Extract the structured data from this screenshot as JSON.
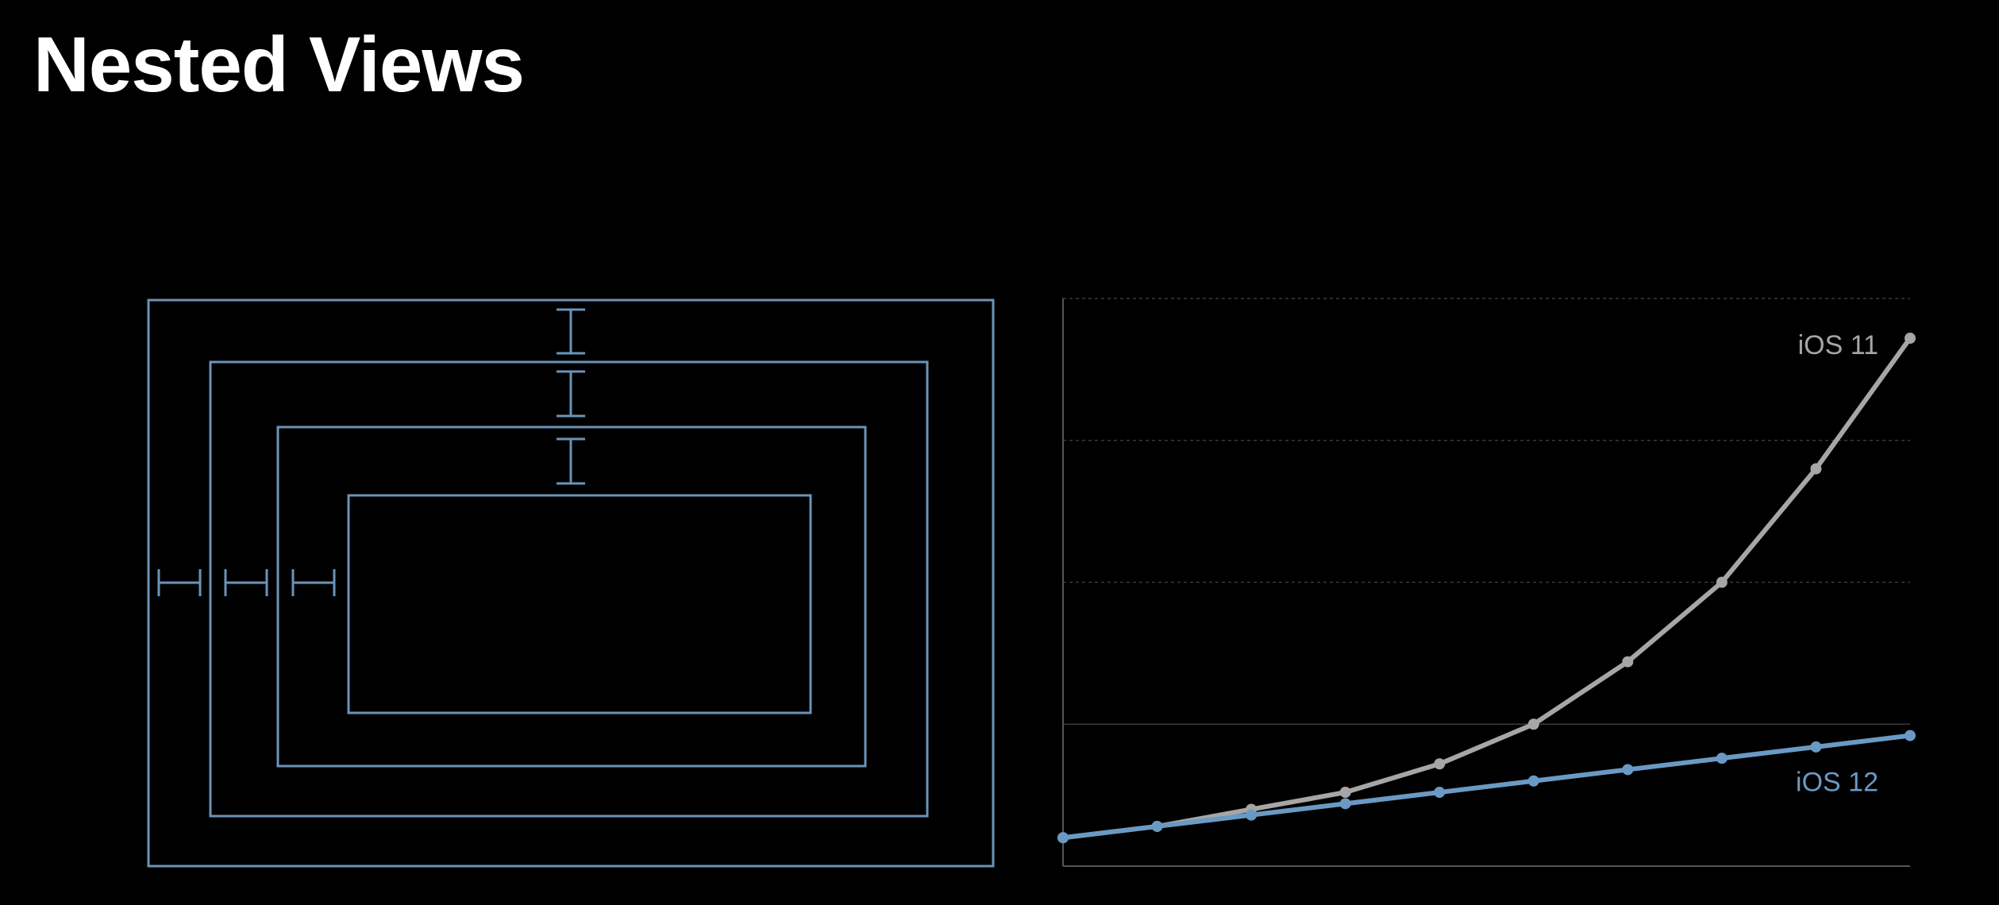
{
  "slide": {
    "title": "Nested Views"
  },
  "diagram": {
    "name": "nested-views",
    "stroke_color": "#6b93b8",
    "boxes": 4,
    "spacing_markers": 3
  },
  "colors": {
    "background": "#000000",
    "title": "#ffffff",
    "ios11": "#a6a6a6",
    "ios12": "#6a99c4",
    "grid": "#3a3a3a",
    "axis": "#555555"
  },
  "chart_data": {
    "type": "line",
    "title": "",
    "xlabel": "",
    "ylabel": "",
    "x": [
      1,
      2,
      3,
      4,
      5,
      6,
      7,
      8,
      9,
      10
    ],
    "ylim": [
      0,
      4
    ],
    "grid": true,
    "legend": "inline labels at line ends",
    "series": [
      {
        "name": "iOS 11",
        "color": "#a6a6a6",
        "values": [
          0.2,
          0.28,
          0.4,
          0.52,
          0.72,
          1.0,
          1.44,
          2.0,
          2.8,
          3.72
        ]
      },
      {
        "name": "iOS 12",
        "color": "#6a99c4",
        "values": [
          0.2,
          0.28,
          0.36,
          0.44,
          0.52,
          0.6,
          0.68,
          0.76,
          0.84,
          0.92
        ]
      }
    ]
  }
}
